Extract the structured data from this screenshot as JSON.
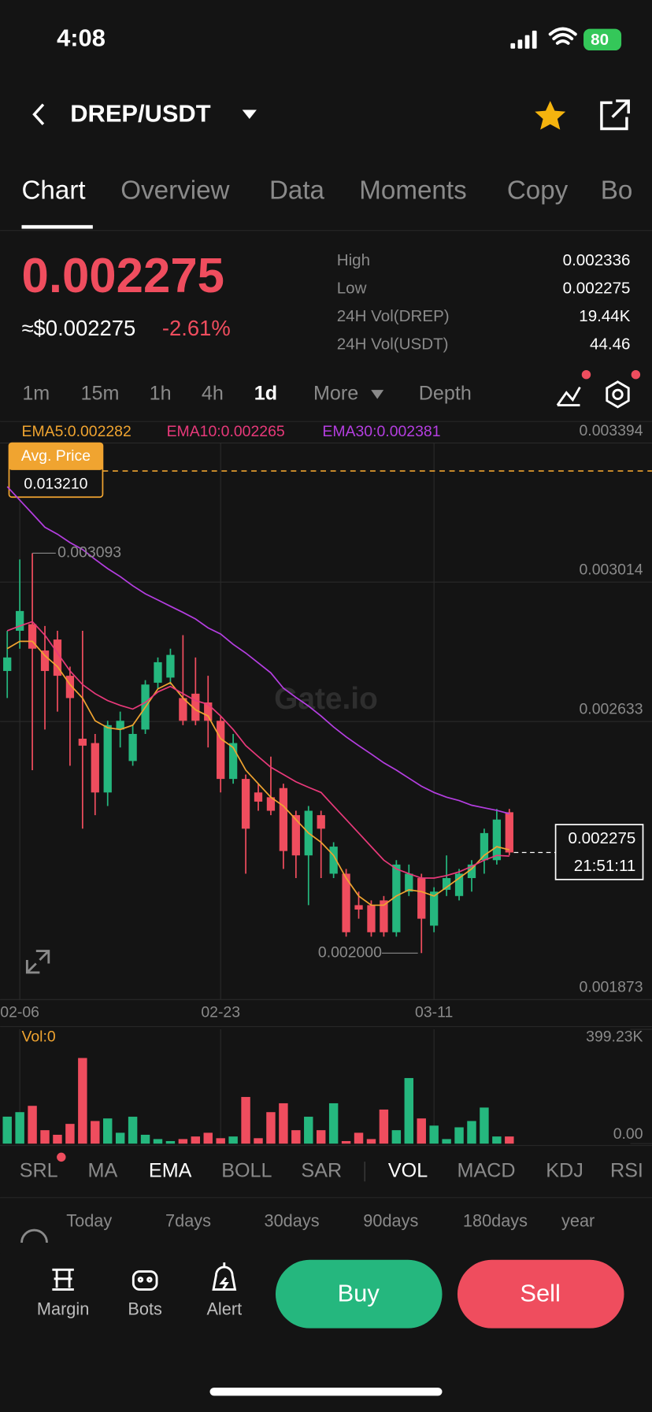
{
  "status_bar": {
    "time": "4:08",
    "battery": "80"
  },
  "header": {
    "pair": "DREP/USDT"
  },
  "tabs": [
    "Chart",
    "Overview",
    "Data",
    "Moments",
    "Copy",
    "Bo"
  ],
  "ticker": {
    "price": "0.002275",
    "usd_price": "≈$0.002275",
    "change": "-2.61%",
    "stats": [
      {
        "label": "High",
        "value": "0.002336"
      },
      {
        "label": "Low",
        "value": "0.002275"
      },
      {
        "label": "24H Vol(DREP)",
        "value": "19.44K"
      },
      {
        "label": "24H Vol(USDT)",
        "value": "44.46"
      }
    ]
  },
  "intervals": [
    "1m",
    "15m",
    "1h",
    "4h",
    "1d",
    "More",
    "Depth"
  ],
  "watermark": "Gate.io",
  "chart_data": {
    "type": "candlestick",
    "categories": [
      null,
      "02-06",
      null,
      null,
      null,
      null,
      null,
      null,
      null,
      null,
      null,
      null,
      null,
      null,
      null,
      null,
      null,
      "02-23",
      null,
      null,
      null,
      null,
      null,
      null,
      null,
      null,
      null,
      null,
      null,
      null,
      null,
      null,
      null,
      null,
      "03-11",
      null,
      null,
      null,
      null,
      null,
      null
    ],
    "open": [
      0.002771,
      0.002881,
      0.002899,
      0.002827,
      0.002857,
      0.002758,
      0.002586,
      0.002574,
      0.002439,
      0.002611,
      0.002525,
      0.002611,
      0.002739,
      0.002753,
      0.002697,
      0.002709,
      0.002685,
      0.002635,
      0.002476,
      0.002476,
      0.002439,
      0.002426,
      0.002451,
      0.002377,
      0.002267,
      0.002377,
      0.002217,
      0.002217,
      0.002131,
      0.002131,
      0.002144,
      0.002057,
      0.002168,
      0.002205,
      0.002075,
      0.002173,
      0.002156,
      0.002205,
      0.002254,
      0.002254,
      0.002385
    ],
    "high": [
      0.002881,
      0.003076,
      0.003093,
      0.002894,
      0.002881,
      0.002783,
      0.002881,
      0.002599,
      0.002635,
      0.00266,
      0.002623,
      0.002746,
      0.002808,
      0.002832,
      0.002869,
      0.002808,
      0.002758,
      0.002648,
      0.002599,
      0.002488,
      0.002463,
      0.002537,
      0.002463,
      0.002389,
      0.002402,
      0.002389,
      0.002303,
      0.00223,
      0.002168,
      0.002144,
      0.002156,
      0.002254,
      0.002242,
      0.002217,
      0.00218,
      0.002267,
      0.00223,
      0.002254,
      0.00234,
      0.002394,
      0.002394
    ],
    "low": [
      0.002697,
      0.002832,
      0.0025,
      0.002611,
      0.00266,
      0.002512,
      0.00234,
      0.002377,
      0.002402,
      0.002562,
      0.002512,
      0.002599,
      0.002722,
      0.002734,
      0.002623,
      0.002623,
      0.002562,
      0.002439,
      0.002463,
      0.002217,
      0.002389,
      0.002377,
      0.00223,
      0.002205,
      0.002131,
      0.002205,
      0.002205,
      0.002045,
      0.002094,
      0.002045,
      0.002045,
      0.002045,
      0.002156,
      0.002,
      0.002057,
      0.002156,
      0.002144,
      0.002168,
      0.002217,
      0.002242,
      0.002267
    ],
    "close": [
      0.002808,
      0.002935,
      0.002832,
      0.002771,
      0.002758,
      0.002697,
      0.002567,
      0.002439,
      0.002623,
      0.002635,
      0.002599,
      0.002734,
      0.002795,
      0.002815,
      0.002635,
      0.002635,
      0.002635,
      0.002476,
      0.002574,
      0.00234,
      0.002414,
      0.002389,
      0.002279,
      0.002267,
      0.002389,
      0.00234,
      0.002291,
      0.002057,
      0.002119,
      0.002057,
      0.002057,
      0.002242,
      0.002217,
      0.002094,
      0.002168,
      0.002205,
      0.002217,
      0.002242,
      0.002328,
      0.002365,
      0.002275
    ],
    "up_color": "#25b77e",
    "down_color": "#ef4d5e",
    "series": [
      {
        "name": "EMA5:0.002282",
        "color": "#f0a430",
        "values": [
          0.002832,
          0.002852,
          0.002852,
          0.002813,
          0.002783,
          0.002734,
          0.002697,
          0.002635,
          0.002616,
          0.002611,
          0.002623,
          0.002672,
          0.002722,
          0.002739,
          0.002697,
          0.002665,
          0.002648,
          0.002586,
          0.002562,
          0.0025,
          0.002463,
          0.002426,
          0.002402,
          0.002365,
          0.002328,
          0.002303,
          0.002267,
          0.002205,
          0.002156,
          0.002131,
          0.002131,
          0.002156,
          0.002173,
          0.002168,
          0.002156,
          0.00218,
          0.002205,
          0.00223,
          0.002267,
          0.002291,
          0.002282
        ]
      },
      {
        "name": "EMA10:0.002265",
        "color": "#e8397a",
        "values": [
          0.002881,
          0.002894,
          0.002906,
          0.002869,
          0.00282,
          0.002771,
          0.002734,
          0.002709,
          0.00269,
          0.002677,
          0.002667,
          0.002685,
          0.002714,
          0.002729,
          0.002709,
          0.00269,
          0.00268,
          0.002648,
          0.002611,
          0.002567,
          0.002537,
          0.002508,
          0.002488,
          0.002468,
          0.002453,
          0.002439,
          0.002402,
          0.002365,
          0.002328,
          0.002291,
          0.002254,
          0.00223,
          0.002217,
          0.002205,
          0.002205,
          0.002212,
          0.002222,
          0.002237,
          0.002254,
          0.002267,
          0.002265
        ]
      },
      {
        "name": "EMA30:0.002381",
        "color": "#b43ee0",
        "values": [
          0.003275,
          0.003238,
          0.003201,
          0.003164,
          0.003145,
          0.003122,
          0.003103,
          0.003076,
          0.003051,
          0.003029,
          0.003004,
          0.002982,
          0.002965,
          0.002948,
          0.002931,
          0.002913,
          0.002889,
          0.002872,
          0.002844,
          0.00282,
          0.002793,
          0.002766,
          0.002724,
          0.002699,
          0.002675,
          0.002648,
          0.002618,
          0.002591,
          0.002567,
          0.002544,
          0.00252,
          0.0025,
          0.002478,
          0.002456,
          0.002439,
          0.002426,
          0.002417,
          0.002404,
          0.002397,
          0.00239,
          0.002381
        ]
      }
    ],
    "ylim": [
      0.001873,
      0.003394
    ],
    "yticks": [
      0.001873,
      0.002633,
      0.003014,
      0.003394
    ],
    "grid": true,
    "low_marker": {
      "value": 0.002,
      "label": "0.002000"
    },
    "avg_price": {
      "title": "Avg. Price",
      "value": 0.01321,
      "value_label": "0.013210"
    },
    "countdown": "21:51:11",
    "volume": {
      "name": "Vol:0",
      "values": [
        94300,
        110000,
        132000,
        47000,
        31000,
        69000,
        299000,
        79000,
        88000,
        38000,
        94000,
        31000,
        16000,
        9000,
        16000,
        25000,
        38000,
        19000,
        25000,
        163000,
        19000,
        110000,
        141000,
        47000,
        94000,
        47000,
        141000,
        9000,
        38000,
        16000,
        119000,
        47000,
        229000,
        88000,
        63000,
        16000,
        57000,
        79000,
        126000,
        25000,
        25000
      ],
      "ylim": [
        0,
        399230
      ],
      "yticks": [
        {
          "value": 0,
          "label": "0.00"
        },
        {
          "value": 399230,
          "label": "399.23K"
        }
      ]
    }
  },
  "indicators": [
    "SRL",
    "MA",
    "EMA",
    "BOLL",
    "SAR",
    "VOL",
    "MACD",
    "KDJ",
    "RSI"
  ],
  "ranges": [
    "Today",
    "7days",
    "30days",
    "90days",
    "180days",
    "year"
  ],
  "actions": {
    "margin": "Margin",
    "bots": "Bots",
    "alert": "Alert",
    "buy": "Buy",
    "sell": "Sell"
  }
}
